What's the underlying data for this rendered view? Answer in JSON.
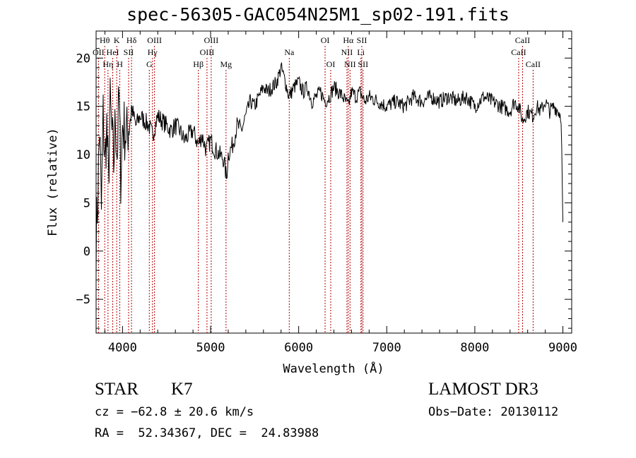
{
  "chart_data": {
    "type": "line",
    "title": "spec-56305-GAC054N25M1_sp02-191.fits",
    "xlabel": "Wavelength (Å)",
    "ylabel": "Flux (relative)",
    "xlim": [
      3700,
      9100
    ],
    "ylim": [
      -8.5,
      22.8
    ],
    "xticks": [
      4000,
      5000,
      6000,
      7000,
      8000,
      9000
    ],
    "yticks": [
      -5,
      0,
      5,
      10,
      15,
      20
    ],
    "series": [
      {
        "name": "flux",
        "color": "#000000",
        "x": [
          3700,
          3720,
          3740,
          3760,
          3780,
          3800,
          3820,
          3840,
          3860,
          3880,
          3900,
          3920,
          3940,
          3960,
          3980,
          4000,
          4050,
          4100,
          4150,
          4200,
          4250,
          4300,
          4340,
          4400,
          4450,
          4500,
          4550,
          4600,
          4650,
          4700,
          4750,
          4800,
          4860,
          4900,
          4950,
          5000,
          5050,
          5100,
          5150,
          5180,
          5200,
          5250,
          5300,
          5350,
          5400,
          5450,
          5500,
          5550,
          5600,
          5650,
          5700,
          5750,
          5800,
          5850,
          5890,
          5950,
          6000,
          6050,
          6100,
          6150,
          6200,
          6250,
          6300,
          6350,
          6400,
          6450,
          6500,
          6563,
          6600,
          6650,
          6700,
          6750,
          6800,
          6900,
          7000,
          7100,
          7200,
          7300,
          7400,
          7500,
          7600,
          7700,
          7800,
          7900,
          8000,
          8100,
          8200,
          8300,
          8400,
          8450,
          8500,
          8542,
          8600,
          8662,
          8700,
          8750,
          8800,
          8850,
          8900,
          8950,
          8980,
          9000
        ],
        "y": [
          1,
          6,
          13,
          4,
          14,
          9,
          13,
          7,
          15,
          12,
          9,
          14,
          10,
          16,
          8,
          13,
          12,
          15,
          13,
          14,
          13.5,
          13,
          12,
          14,
          13.5,
          13,
          12.5,
          13,
          12.5,
          11.5,
          12,
          12.5,
          11,
          12,
          10.5,
          11.5,
          10.5,
          10,
          9.5,
          7.5,
          10,
          11,
          13,
          12.5,
          14,
          15.5,
          15,
          16,
          17,
          16.5,
          17,
          17.5,
          19,
          17.5,
          16,
          17,
          17.5,
          16.5,
          17,
          15.5,
          16,
          16.5,
          15.5,
          16,
          17,
          16.5,
          16,
          15,
          16.5,
          16,
          16.5,
          15.5,
          16,
          15.5,
          15,
          15.5,
          15,
          16,
          15.5,
          16,
          15.5,
          16,
          15.5,
          16,
          15,
          16,
          15.5,
          15,
          14.5,
          15.5,
          15,
          13.5,
          14.5,
          14,
          15,
          14.5,
          15.5,
          14.5,
          15,
          14.5,
          14,
          3
        ]
      }
    ],
    "lines": [
      {
        "label": "Hθ",
        "x": 3798,
        "row": 1
      },
      {
        "label": "OII",
        "x": 3727,
        "row": 2
      },
      {
        "label": "Hη",
        "x": 3835,
        "row": 3
      },
      {
        "label": "K",
        "x": 3934,
        "row": 1
      },
      {
        "label": "HeI",
        "x": 3889,
        "row": 2
      },
      {
        "label": "SII",
        "x": 4069,
        "row": 2
      },
      {
        "label": "H",
        "x": 3969,
        "row": 3
      },
      {
        "label": "Hδ",
        "x": 4102,
        "row": 1
      },
      {
        "label": "OIII",
        "x": 4363,
        "row": 1
      },
      {
        "label": "Hγ",
        "x": 4340,
        "row": 2
      },
      {
        "label": "G",
        "x": 4304,
        "row": 3
      },
      {
        "label": "OIII",
        "x": 5007,
        "row": 1
      },
      {
        "label": "OIII",
        "x": 4959,
        "row": 2
      },
      {
        "label": "Hβ",
        "x": 4861,
        "row": 3
      },
      {
        "label": "Mg",
        "x": 5175,
        "row": 3
      },
      {
        "label": "Na",
        "x": 5893,
        "row": 2
      },
      {
        "label": "OI",
        "x": 6300,
        "row": 1
      },
      {
        "label": "OI",
        "x": 6364,
        "row": 3
      },
      {
        "label": "Hα",
        "x": 6563,
        "row": 1
      },
      {
        "label": "NII",
        "x": 6548,
        "row": 2
      },
      {
        "label": "NII",
        "x": 6583,
        "row": 3
      },
      {
        "label": "SII",
        "x": 6717,
        "row": 1
      },
      {
        "label": "Li",
        "x": 6707,
        "row": 2
      },
      {
        "label": "SII",
        "x": 6731,
        "row": 3
      },
      {
        "label": "CaII",
        "x": 8542,
        "row": 1
      },
      {
        "label": "CaII",
        "x": 8498,
        "row": 2
      },
      {
        "label": "CaII",
        "x": 8662,
        "row": 3
      }
    ]
  },
  "info": {
    "object_class": "STAR",
    "subclass": "K7",
    "survey": "LAMOST DR3",
    "cz": "cz = −62.8 ± 20.6 km/s",
    "obs_date": "Obs−Date: 20130112",
    "coords": "RA =  52.34367, DEC =  24.83988"
  }
}
